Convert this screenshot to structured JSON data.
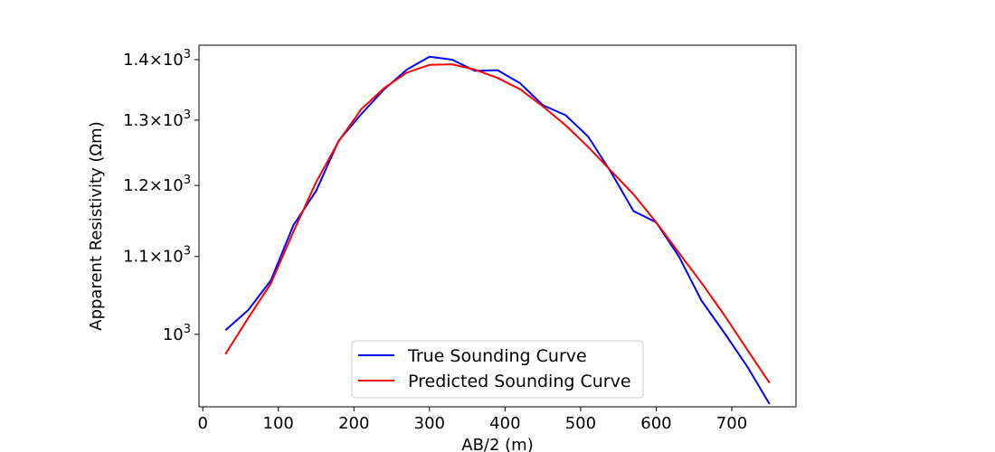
{
  "chart_data": {
    "type": "line",
    "xlabel": "AB/2 (m)",
    "ylabel": "Apparent Resistivity (Ωm)",
    "xlim": [
      -5,
      785
    ],
    "ylim": [
      915,
      1425
    ],
    "yscale": "log",
    "grid": false,
    "legend_position": "lower-center",
    "x_ticks": [
      0,
      100,
      200,
      300,
      400,
      500,
      600,
      700
    ],
    "y_ticks": [
      {
        "value": 1000,
        "mantissa": "",
        "base": "10",
        "exponent": "3"
      },
      {
        "value": 1100,
        "mantissa": "1.1",
        "base": "10",
        "exponent": "3"
      },
      {
        "value": 1200,
        "mantissa": "1.2",
        "base": "10",
        "exponent": "3"
      },
      {
        "value": 1300,
        "mantissa": "1.3",
        "base": "10",
        "exponent": "3"
      },
      {
        "value": 1400,
        "mantissa": "1.4",
        "base": "10",
        "exponent": "3"
      }
    ],
    "series": [
      {
        "name": "True Sounding Curve",
        "color": "#0000ff",
        "x": [
          30,
          60,
          90,
          120,
          150,
          180,
          210,
          240,
          270,
          300,
          330,
          360,
          390,
          420,
          450,
          480,
          510,
          540,
          570,
          600,
          630,
          660,
          690,
          720,
          750
        ],
        "y": [
          1005,
          1030,
          1068,
          1143,
          1192,
          1268,
          1310,
          1350,
          1383,
          1405,
          1400,
          1381,
          1382,
          1360,
          1324,
          1308,
          1274,
          1220,
          1163,
          1147,
          1100,
          1042,
          1002,
          962,
          918
        ]
      },
      {
        "name": "Predicted Sounding Curve",
        "color": "#ff0000",
        "x": [
          30,
          60,
          90,
          120,
          150,
          180,
          210,
          240,
          270,
          300,
          330,
          360,
          390,
          420,
          450,
          480,
          510,
          540,
          570,
          600,
          630,
          660,
          690,
          720,
          750
        ],
        "y": [
          976,
          1020,
          1064,
          1134,
          1205,
          1267,
          1318,
          1352,
          1378,
          1391,
          1392,
          1383,
          1369,
          1350,
          1322,
          1292,
          1258,
          1222,
          1187,
          1147,
          1105,
          1065,
          1024,
          982,
          942
        ]
      }
    ]
  }
}
